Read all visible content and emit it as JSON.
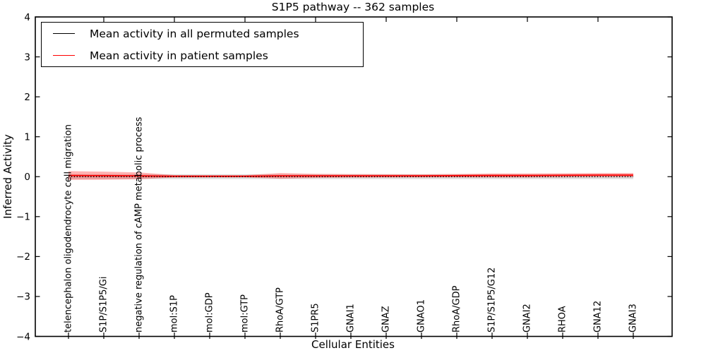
{
  "title": "S1P5 pathway -- 362 samples",
  "chart_data": {
    "type": "line",
    "title": "S1P5 pathway -- 362 samples",
    "xlabel": "Cellular Entities",
    "ylabel": "Inferred Activity",
    "ylim": [
      -4,
      4
    ],
    "grid": false,
    "legend_position": "upper left",
    "background_color": "#ffffff",
    "axis_color": "#000000",
    "yticks": [
      -4,
      -3,
      -2,
      -1,
      0,
      1,
      2,
      3,
      4
    ],
    "ytick_labels": [
      "−4",
      "−3",
      "−2",
      "−1",
      "0",
      "1",
      "2",
      "3",
      "4"
    ],
    "top_tick_indices": [
      1,
      3,
      5,
      7,
      9,
      11,
      13,
      15
    ],
    "categories": [
      "telencephalon oligodendrocyte cell migration",
      "S1P/S1P5/Gi",
      "negative regulation of cAMP metabolic process",
      "mol:S1P",
      "mol:GDP",
      "mol:GTP",
      "RhoA/GTP",
      "S1PR5",
      "GNAI1",
      "GNAZ",
      "GNAO1",
      "RhoA/GDP",
      "S1P/S1P5/G12",
      "GNAI2",
      "RHOA",
      "GNA12",
      "GNAI3"
    ],
    "series": [
      {
        "name": "Mean activity in all permuted samples",
        "color": "#000000",
        "line_style": "dotted",
        "values": [
          0,
          0,
          0,
          0,
          0,
          0,
          0,
          0,
          0,
          0,
          0,
          0,
          0,
          0,
          0,
          0,
          0
        ],
        "band_halfwidth": [
          0.06,
          0.06,
          0.06,
          0.06,
          0.06,
          0.06,
          0.06,
          0.06,
          0.06,
          0.06,
          0.06,
          0.06,
          0.06,
          0.06,
          0.06,
          0.06,
          0.06
        ],
        "band_color": "#808080",
        "band_opacity": 0.28
      },
      {
        "name": "Mean activity in patient samples",
        "color": "#ff0000",
        "line_style": "solid",
        "values": [
          0.03,
          0.025,
          0.02,
          0.01,
          0.01,
          0.01,
          0.02,
          0.02,
          0.02,
          0.02,
          0.02,
          0.025,
          0.03,
          0.03,
          0.035,
          0.04,
          0.04
        ],
        "band_halfwidth": [
          0.11,
          0.1,
          0.085,
          0.03,
          0.028,
          0.028,
          0.07,
          0.05,
          0.045,
          0.042,
          0.04,
          0.042,
          0.05,
          0.05,
          0.05,
          0.05,
          0.052
        ],
        "band_color": "#ff0000",
        "band_opacity": 0.3
      }
    ]
  }
}
